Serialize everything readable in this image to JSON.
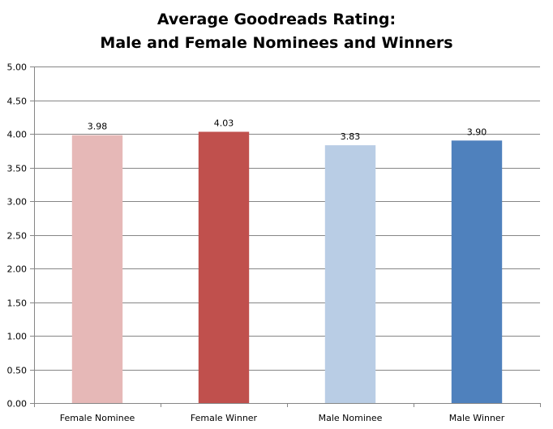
{
  "chart_data": {
    "type": "bar",
    "title": "Average Goodreads Rating:",
    "subtitle": "Male and Female Nominees and Winners",
    "categories": [
      "Female Nominee",
      "Female Winner",
      "Male Nominee",
      "Male Winner"
    ],
    "values": [
      3.98,
      4.03,
      3.83,
      3.9
    ],
    "data_labels": [
      "3.98",
      "4.03",
      "3.83",
      "3.90"
    ],
    "colors": [
      "#e6b8b7",
      "#c0504d",
      "#b9cde5",
      "#4f81bd"
    ],
    "ylim": [
      0,
      5
    ],
    "yticks": [
      "0.00",
      "0.50",
      "1.00",
      "1.50",
      "2.00",
      "2.50",
      "3.00",
      "3.50",
      "4.00",
      "4.50",
      "5.00"
    ],
    "grid": true,
    "legend": "none",
    "xlabel": "",
    "ylabel": ""
  }
}
